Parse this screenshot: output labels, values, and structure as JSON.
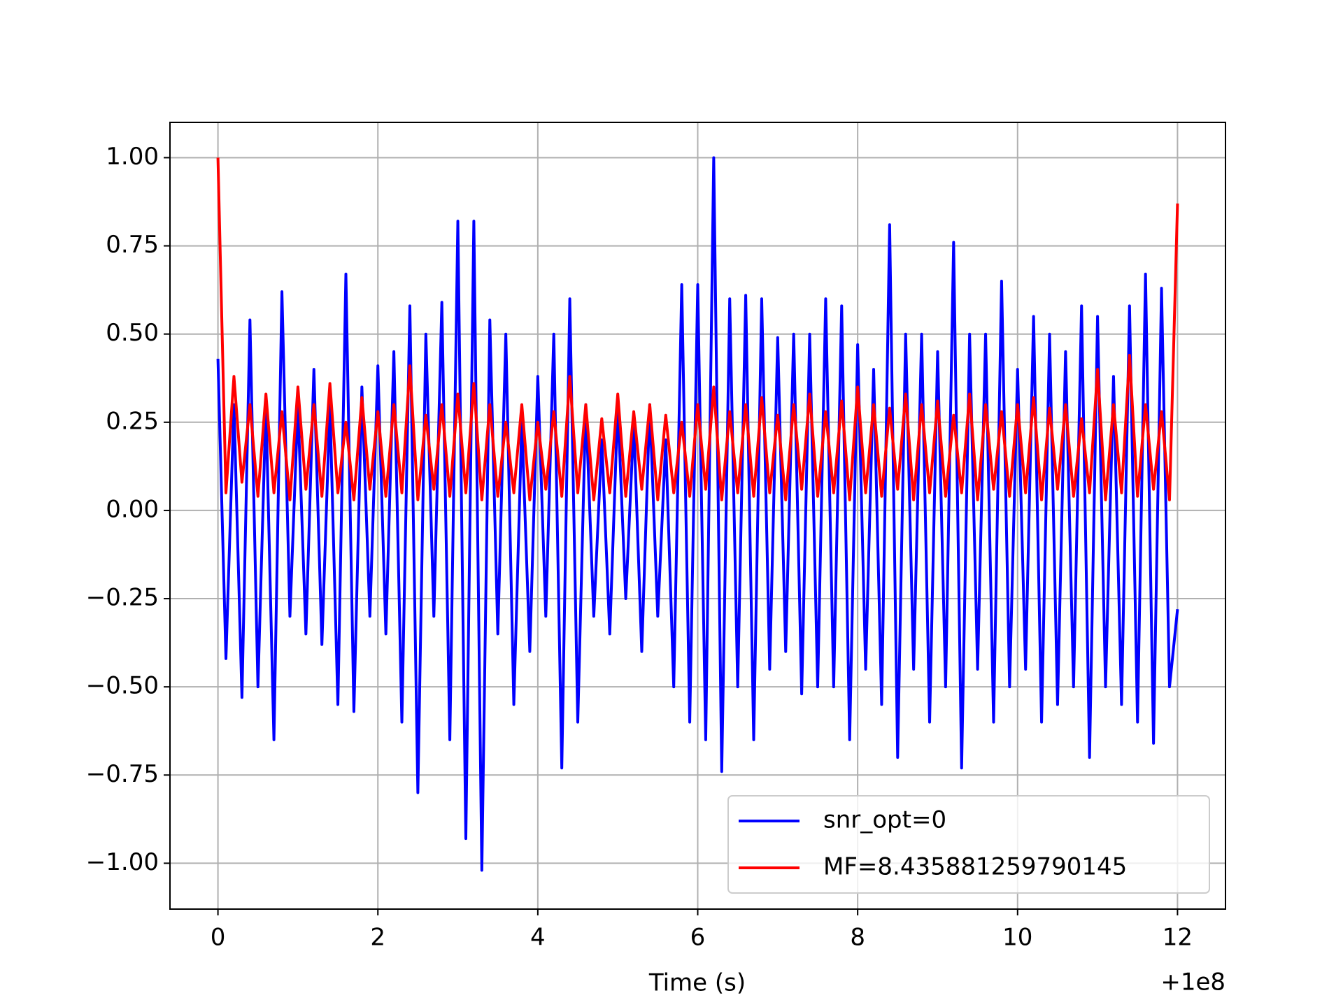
{
  "chart_data": {
    "type": "line",
    "xlabel": "Time (s)",
    "x_offset_label": "+1e8",
    "x": [
      0,
      0.1,
      0.2,
      0.3,
      0.4,
      0.5,
      0.6,
      0.7,
      0.8,
      0.9,
      1.0,
      1.1,
      1.2,
      1.3,
      1.4,
      1.5,
      1.6,
      1.7,
      1.8,
      1.9,
      2.0,
      2.1,
      2.2,
      2.3,
      2.4,
      2.5,
      2.6,
      2.7,
      2.8,
      2.9,
      3.0,
      3.1,
      3.2,
      3.3,
      3.4,
      3.5,
      3.6,
      3.7,
      3.8,
      3.9,
      4.0,
      4.1,
      4.2,
      4.3,
      4.4,
      4.5,
      4.6,
      4.7,
      4.8,
      4.9,
      5.0,
      5.1,
      5.2,
      5.3,
      5.4,
      5.5,
      5.6,
      5.7,
      5.8,
      5.9,
      6.0,
      6.1,
      6.2,
      6.3,
      6.4,
      6.5,
      6.6,
      6.7,
      6.8,
      6.9,
      7.0,
      7.1,
      7.2,
      7.3,
      7.4,
      7.5,
      7.6,
      7.7,
      7.8,
      7.9,
      8.0,
      8.1,
      8.2,
      8.3,
      8.4,
      8.5,
      8.6,
      8.7,
      8.8,
      8.9,
      9.0,
      9.1,
      9.2,
      9.3,
      9.4,
      9.5,
      9.6,
      9.7,
      9.8,
      9.9,
      10.0,
      10.1,
      10.2,
      10.3,
      10.4,
      10.5,
      10.6,
      10.7,
      10.8,
      10.9,
      11.0,
      11.1,
      11.2,
      11.3,
      11.4,
      11.5,
      11.6,
      11.7,
      11.8,
      11.9,
      12.0
    ],
    "series": [
      {
        "name": "snr_opt=0",
        "color": "#0000ff",
        "values": [
          0.43,
          -0.42,
          0.3,
          -0.53,
          0.54,
          -0.5,
          0.3,
          -0.65,
          0.62,
          -0.3,
          0.3,
          -0.35,
          0.4,
          -0.38,
          0.3,
          -0.55,
          0.67,
          -0.57,
          0.35,
          -0.3,
          0.41,
          -0.35,
          0.45,
          -0.6,
          0.58,
          -0.8,
          0.5,
          -0.3,
          0.59,
          -0.65,
          0.82,
          -0.93,
          0.82,
          -1.02,
          0.54,
          -0.35,
          0.5,
          -0.55,
          0.25,
          -0.4,
          0.38,
          -0.3,
          0.5,
          -0.73,
          0.6,
          -0.6,
          0.3,
          -0.3,
          0.2,
          -0.35,
          0.3,
          -0.25,
          0.25,
          -0.4,
          0.3,
          -0.3,
          0.2,
          -0.5,
          0.64,
          -0.6,
          0.64,
          -0.65,
          1.0,
          -0.74,
          0.6,
          -0.5,
          0.61,
          -0.65,
          0.6,
          -0.45,
          0.49,
          -0.4,
          0.5,
          -0.52,
          0.5,
          -0.5,
          0.6,
          -0.5,
          0.58,
          -0.65,
          0.47,
          -0.45,
          0.4,
          -0.55,
          0.81,
          -0.7,
          0.5,
          -0.45,
          0.5,
          -0.6,
          0.45,
          -0.5,
          0.76,
          -0.73,
          0.5,
          -0.45,
          0.5,
          -0.6,
          0.65,
          -0.5,
          0.4,
          -0.45,
          0.55,
          -0.6,
          0.5,
          -0.55,
          0.45,
          -0.5,
          0.58,
          -0.7,
          0.55,
          -0.5,
          0.38,
          -0.55,
          0.58,
          -0.6,
          0.67,
          -0.66,
          0.63,
          -0.5,
          -0.28
        ]
      },
      {
        "name": "MF=8.435881259790145",
        "color": "#ff0000",
        "values": [
          1.0,
          0.05,
          0.38,
          0.08,
          0.3,
          0.04,
          0.33,
          0.05,
          0.28,
          0.03,
          0.35,
          0.06,
          0.3,
          0.04,
          0.36,
          0.05,
          0.25,
          0.03,
          0.32,
          0.06,
          0.28,
          0.04,
          0.3,
          0.05,
          0.41,
          0.03,
          0.27,
          0.06,
          0.3,
          0.04,
          0.33,
          0.05,
          0.36,
          0.03,
          0.3,
          0.04,
          0.25,
          0.05,
          0.3,
          0.03,
          0.25,
          0.06,
          0.28,
          0.04,
          0.38,
          0.05,
          0.3,
          0.03,
          0.26,
          0.05,
          0.33,
          0.04,
          0.28,
          0.06,
          0.3,
          0.03,
          0.27,
          0.05,
          0.25,
          0.04,
          0.3,
          0.06,
          0.35,
          0.03,
          0.28,
          0.05,
          0.3,
          0.04,
          0.32,
          0.05,
          0.27,
          0.03,
          0.3,
          0.06,
          0.33,
          0.04,
          0.28,
          0.05,
          0.31,
          0.03,
          0.35,
          0.05,
          0.3,
          0.04,
          0.29,
          0.06,
          0.33,
          0.03,
          0.3,
          0.05,
          0.31,
          0.04,
          0.27,
          0.05,
          0.33,
          0.03,
          0.3,
          0.06,
          0.28,
          0.04,
          0.3,
          0.05,
          0.32,
          0.03,
          0.29,
          0.06,
          0.3,
          0.04,
          0.26,
          0.05,
          0.4,
          0.03,
          0.3,
          0.05,
          0.44,
          0.04,
          0.3,
          0.06,
          0.28,
          0.03,
          0.87
        ]
      }
    ],
    "xlim": [
      -0.6,
      12.6
    ],
    "ylim": [
      -1.13,
      1.1
    ],
    "xticks": [
      0,
      2,
      4,
      6,
      8,
      10,
      12
    ],
    "yticks": [
      {
        "value": -1,
        "label": "−1.00"
      },
      {
        "value": -0.75,
        "label": "−0.75"
      },
      {
        "value": -0.5,
        "label": "−0.50"
      },
      {
        "value": -0.25,
        "label": "−0.25"
      },
      {
        "value": 0,
        "label": "0.00"
      },
      {
        "value": 0.25,
        "label": "0.25"
      },
      {
        "value": 0.5,
        "label": "0.50"
      },
      {
        "value": 0.75,
        "label": "0.75"
      },
      {
        "value": 1,
        "label": "1.00"
      }
    ],
    "grid": true,
    "legend": "lower right"
  }
}
